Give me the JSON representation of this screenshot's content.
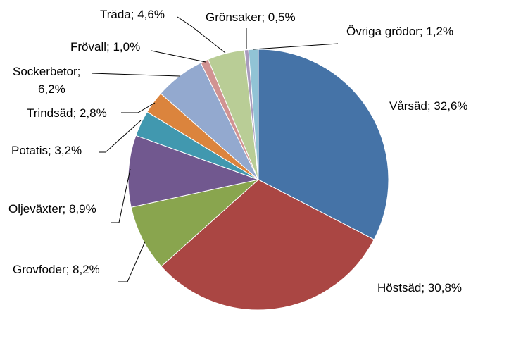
{
  "chart_data": {
    "type": "pie",
    "title": "",
    "slices": [
      {
        "name": "Vårsäd",
        "value": 32.6,
        "label": "Vårsäd; 32,6%",
        "color": "#4573a7"
      },
      {
        "name": "Höstsäd",
        "value": 30.8,
        "label": "Höstsäd; 30,8%",
        "color": "#aa4643"
      },
      {
        "name": "Grovfoder",
        "value": 8.2,
        "label": "Grovfoder; 8,2%",
        "color": "#89a54e"
      },
      {
        "name": "Oljeväxter",
        "value": 8.9,
        "label": "Oljeväxter; 8,9%",
        "color": "#71588f"
      },
      {
        "name": "Potatis",
        "value": 3.2,
        "label": "Potatis; 3,2%",
        "color": "#4198af"
      },
      {
        "name": "Trindsäd",
        "value": 2.8,
        "label": "Trindsäd; 2,8%",
        "color": "#db843d"
      },
      {
        "name": "Sockerbetor",
        "value": 6.2,
        "label_lines": [
          "Sockerbetor;",
          "6,2%"
        ],
        "color": "#93a9cf"
      },
      {
        "name": "Frövall",
        "value": 1.0,
        "label": "Frövall; 1,0%",
        "color": "#d19392"
      },
      {
        "name": "Träda",
        "value": 4.6,
        "label": "Träda; 4,6%",
        "color": "#b9cd96"
      },
      {
        "name": "Grönsaker",
        "value": 0.5,
        "label": "Grönsaker; 0,5%",
        "color": "#a99bbd"
      },
      {
        "name": "Övriga grödor",
        "value": 1.2,
        "label": "Övriga grödor; 1,2%",
        "color": "#91c3d5"
      }
    ],
    "start_angle_deg": 0,
    "direction": "clockwise",
    "legend": "none"
  }
}
